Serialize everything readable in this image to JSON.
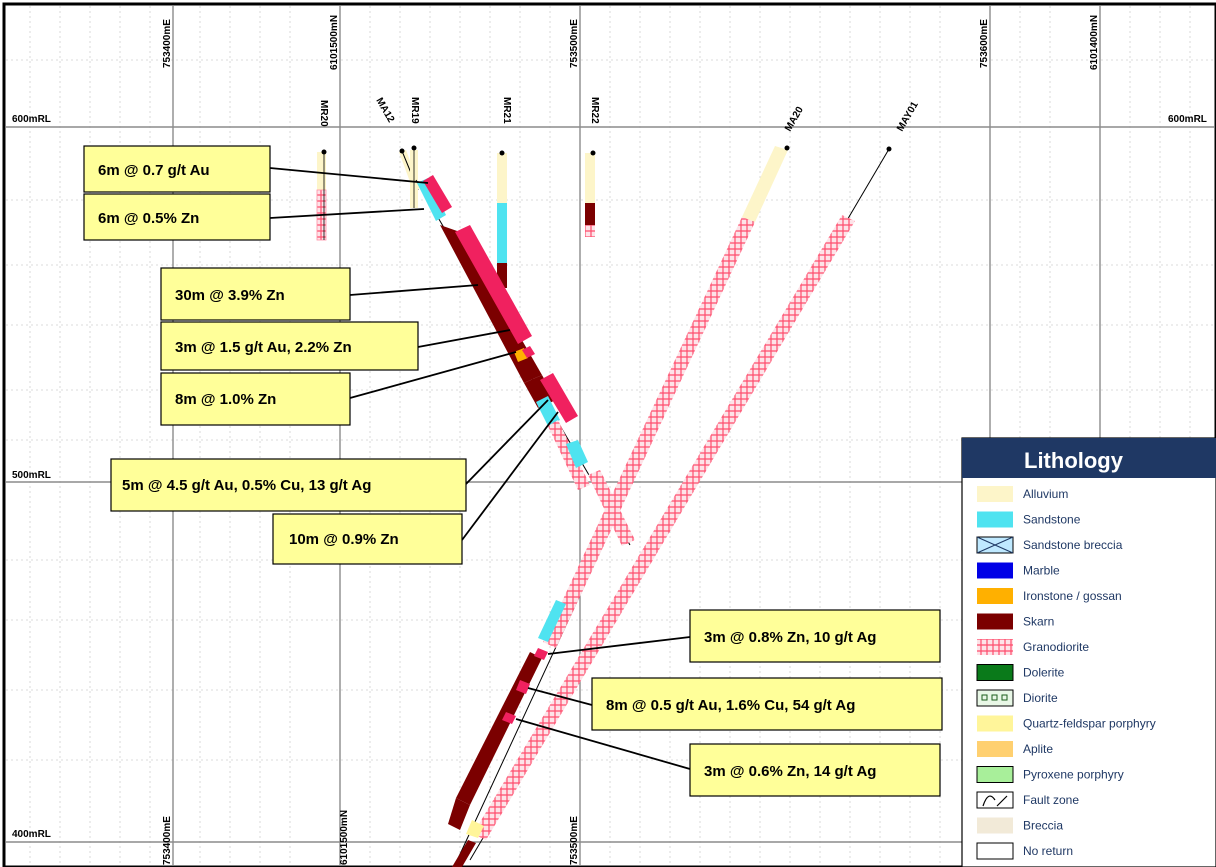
{
  "rl_labels": {
    "top_left": "600mRL",
    "top_right": "600mRL",
    "mid": "500mRL",
    "bottom": "400mRL"
  },
  "top_coords": [
    "753400mE",
    "6101500mN",
    "753500mE",
    "753600mE",
    "6101400mN"
  ],
  "bottom_coords": [
    "753400mE",
    "6101500mN",
    "753500mE"
  ],
  "drillholes": [
    "MR20",
    "MA12",
    "MR19",
    "MR21",
    "MR22",
    "MA20",
    "MAY01"
  ],
  "callouts": [
    "6m @ 0.7 g/t Au",
    "6m @ 0.5% Zn",
    "30m @  3.9% Zn",
    "3m @ 1.5 g/t Au, 2.2% Zn",
    "8m @ 1.0% Zn",
    "5m @ 4.5 g/t Au, 0.5% Cu, 13 g/t Ag",
    "10m @ 0.9% Zn",
    "3m @ 0.8% Zn, 10 g/t Ag",
    "8m @ 0.5 g/t Au, 1.6% Cu, 54 g/t Ag",
    "3m @ 0.6% Zn, 14 g/t Ag"
  ],
  "legend": {
    "title": "Lithology",
    "items": [
      {
        "label": "Alluvium",
        "color": "#fdf5c9"
      },
      {
        "label": "Sandstone",
        "color": "#4fe3f0"
      },
      {
        "label": "Sandstone breccia",
        "color": "#bfe9ff"
      },
      {
        "label": "Marble",
        "color": "#0000e6"
      },
      {
        "label": "Ironstone / gossan",
        "color": "#ffb000"
      },
      {
        "label": "Skarn",
        "color": "#7b0000"
      },
      {
        "label": "Granodiorite",
        "color": "#ff4d6d"
      },
      {
        "label": "Dolerite",
        "color": "#0a7a1a"
      },
      {
        "label": "Diorite",
        "color": "#e8f7e6"
      },
      {
        "label": "Quartz-feldspar porphyry",
        "color": "#fff59a"
      },
      {
        "label": "Aplite",
        "color": "#ffd070"
      },
      {
        "label": "Pyroxene porphyry",
        "color": "#a8ef9a"
      },
      {
        "label": "Fault zone",
        "color": "#ffffff"
      },
      {
        "label": "Breccia",
        "color": "#f2ead8"
      },
      {
        "label": "No return",
        "color": "#ffffff"
      }
    ]
  },
  "colors": {
    "assay_bar": "#f0215f",
    "skarn": "#7b0000",
    "sandstone": "#4fe3f0",
    "alluvium": "#fdf5c9",
    "callout_fill": "#ffff99",
    "legend_header": "#1f3864"
  }
}
